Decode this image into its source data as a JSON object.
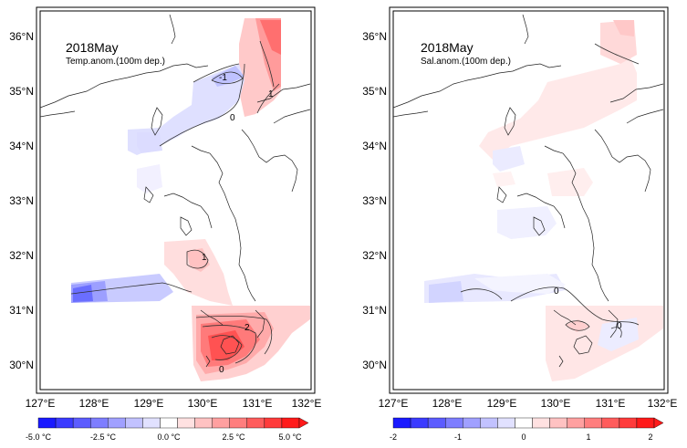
{
  "panels": [
    {
      "title": "2018May",
      "subtitle": "Temp.anom.(100m dep.)",
      "lat_ticks": [
        "36°N",
        "35°N",
        "34°N",
        "33°N",
        "32°N",
        "31°N",
        "30°N"
      ],
      "lon_ticks": [
        "127°E",
        "128°E",
        "129°E",
        "130°E",
        "131°E",
        "132°E"
      ],
      "contour_labels": [
        "-1",
        "0",
        "1",
        "1",
        "2",
        "0"
      ],
      "colorbar": {
        "labels": [
          "-5.0 °C",
          "-2.5 °C",
          "0.0 °C",
          "2.5 °C",
          "5.0 °C"
        ],
        "range": [
          -5.0,
          5.0
        ],
        "colors": [
          "#1a1aff",
          "#3b3bff",
          "#5c5cff",
          "#7e7eff",
          "#a0a0ff",
          "#c2c2ff",
          "#e1e1ff",
          "#ffffff",
          "#ffe1e1",
          "#ffc2c2",
          "#ffa0a0",
          "#ff7e7e",
          "#ff5c5c",
          "#ff3b3b",
          "#ff1a1a"
        ]
      }
    },
    {
      "title": "2018May",
      "subtitle": "Sal.anom.(100m dep.)",
      "lat_ticks": [
        "36°N",
        "35°N",
        "34°N",
        "33°N",
        "32°N",
        "31°N",
        "30°N"
      ],
      "lon_ticks": [
        "127°E",
        "128°E",
        "129°E",
        "130°E",
        "131°E",
        "132°E"
      ],
      "contour_labels": [
        "0",
        "0"
      ],
      "colorbar": {
        "labels": [
          "-2",
          "-1",
          "0",
          "1",
          "2"
        ],
        "range": [
          -2,
          2
        ],
        "colors": [
          "#1a1aff",
          "#3b3bff",
          "#5c5cff",
          "#7e7eff",
          "#a0a0ff",
          "#c2c2ff",
          "#e1e1ff",
          "#ffffff",
          "#ffe1e1",
          "#ffc2c2",
          "#ffa0a0",
          "#ff7e7e",
          "#ff5c5c",
          "#ff3b3b",
          "#ff1a1a"
        ]
      }
    }
  ],
  "colors": {
    "coast": "#222222",
    "contour": "#333333",
    "frame": "#000000"
  }
}
